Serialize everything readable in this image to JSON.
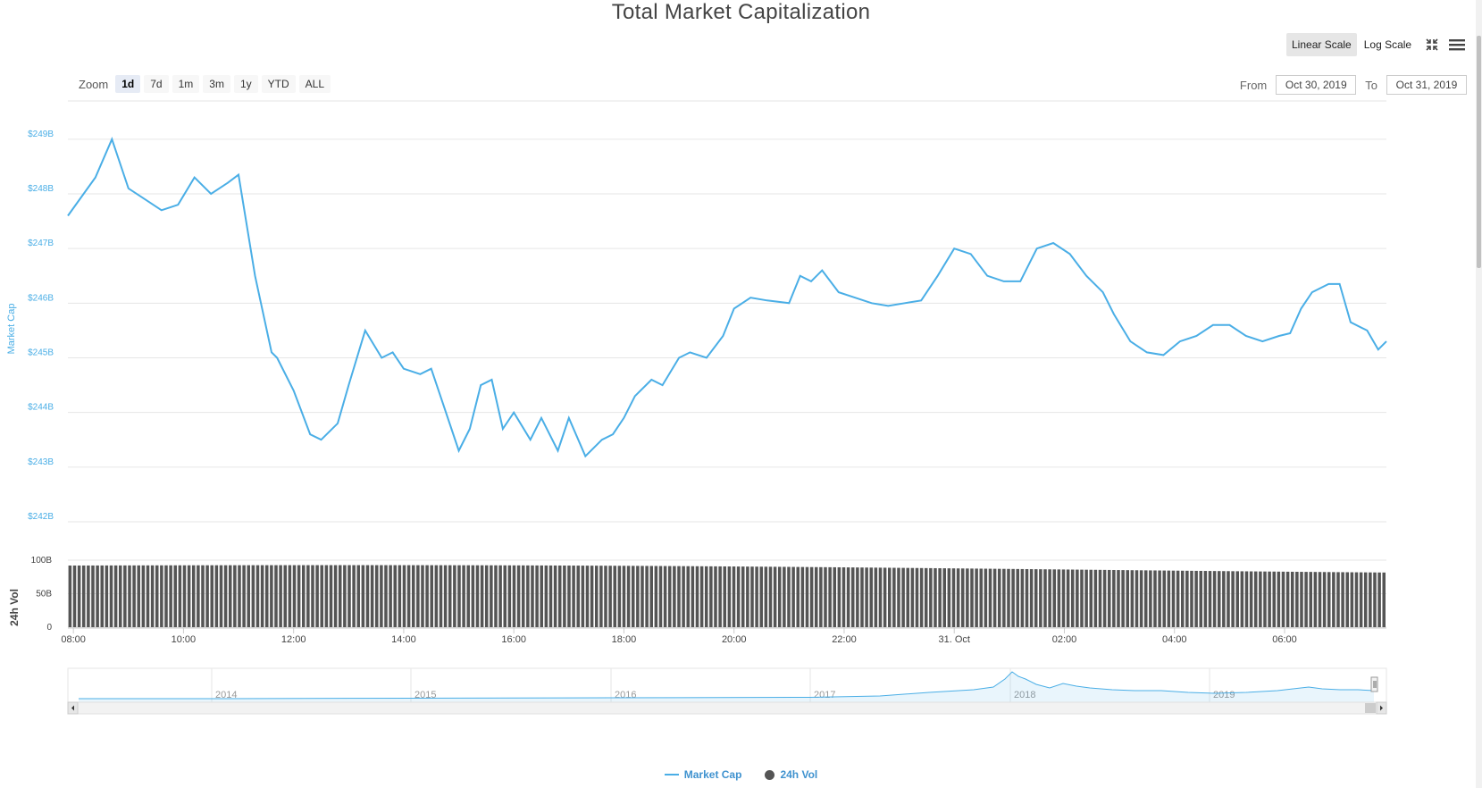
{
  "title": "Total Market Capitalization",
  "scale_buttons": {
    "linear": "Linear Scale",
    "log": "Log Scale",
    "active": "linear"
  },
  "icons": {
    "fullscreen": "expand-arrows-icon",
    "menu": "hamburger-menu-icon"
  },
  "zoom": {
    "label": "Zoom",
    "options": [
      "1d",
      "7d",
      "1m",
      "3m",
      "1y",
      "YTD",
      "ALL"
    ],
    "active": "1d"
  },
  "range": {
    "from_label": "From",
    "from_value": "Oct 30, 2019",
    "to_label": "To",
    "to_value": "Oct 31, 2019"
  },
  "colors": {
    "market_cap": "#4aaee6",
    "volume": "#555555",
    "axis_label": "#4aaee6"
  },
  "chart_data": [
    {
      "type": "line",
      "series": [
        {
          "name": "Market Cap",
          "unit": "B"
        }
      ],
      "ylabel": "Market Cap",
      "ylim": [
        242,
        249.7
      ],
      "y_ticks": [
        "$249B",
        "$248B",
        "$247B",
        "$246B",
        "$245B",
        "$244B",
        "$243B",
        "$242B"
      ],
      "x_ticks": [
        "08:00",
        "10:00",
        "12:00",
        "14:00",
        "16:00",
        "18:00",
        "20:00",
        "22:00",
        "31. Oct",
        "02:00",
        "04:00",
        "06:00"
      ],
      "x_range_hours": [
        7.9,
        31.85
      ],
      "x": [
        7.9,
        8.4,
        8.7,
        9.0,
        9.3,
        9.6,
        9.9,
        10.2,
        10.5,
        10.8,
        11.0,
        11.3,
        11.6,
        11.7,
        12.0,
        12.3,
        12.5,
        12.8,
        13.0,
        13.3,
        13.6,
        13.8,
        14.0,
        14.3,
        14.5,
        14.7,
        15.0,
        15.2,
        15.4,
        15.6,
        15.8,
        16.0,
        16.3,
        16.5,
        16.8,
        17.0,
        17.3,
        17.6,
        17.8,
        18.0,
        18.2,
        18.5,
        18.7,
        19.0,
        19.2,
        19.5,
        19.8,
        20.0,
        20.3,
        20.6,
        21.0,
        21.2,
        21.4,
        21.6,
        21.9,
        22.2,
        22.5,
        22.8,
        23.1,
        23.4,
        23.7,
        24.0,
        24.3,
        24.6,
        24.9,
        25.2,
        25.5,
        25.8,
        26.1,
        26.4,
        26.7,
        26.9,
        27.2,
        27.5,
        27.8,
        28.1,
        28.4,
        28.7,
        29.0,
        29.3,
        29.6,
        29.9,
        30.1,
        30.3,
        30.5,
        30.8,
        31.0,
        31.2,
        31.5,
        31.7,
        31.85
      ],
      "values": [
        247.6,
        248.3,
        249.0,
        248.1,
        247.9,
        247.7,
        247.8,
        248.3,
        248.0,
        248.2,
        248.35,
        246.5,
        245.1,
        245.0,
        244.4,
        243.6,
        243.5,
        243.8,
        244.5,
        245.5,
        245.0,
        245.1,
        244.8,
        244.7,
        244.8,
        244.2,
        243.3,
        243.7,
        244.5,
        244.6,
        243.7,
        244.0,
        243.5,
        243.9,
        243.3,
        243.9,
        243.2,
        243.5,
        243.6,
        243.9,
        244.3,
        244.6,
        244.5,
        245.0,
        245.1,
        245.0,
        245.4,
        245.9,
        246.1,
        246.05,
        246.0,
        246.5,
        246.4,
        246.6,
        246.2,
        246.1,
        246.0,
        245.95,
        246.0,
        246.05,
        246.5,
        247.0,
        246.9,
        246.5,
        246.4,
        246.4,
        247.0,
        247.1,
        246.9,
        246.5,
        246.2,
        245.8,
        245.3,
        245.1,
        245.05,
        245.3,
        245.4,
        245.6,
        245.6,
        245.4,
        245.3,
        245.4,
        245.45,
        245.9,
        246.2,
        246.35,
        246.35,
        245.65,
        245.5,
        245.15,
        245.3
      ]
    },
    {
      "type": "bar",
      "series": [
        {
          "name": "24h Vol",
          "unit": "B"
        }
      ],
      "ylabel": "24h Vol",
      "ylim": [
        0,
        120
      ],
      "y_ticks": [
        "100B",
        "50B",
        "0"
      ],
      "values_first_last": [
        92,
        84
      ]
    }
  ],
  "navigator": {
    "years": [
      "2014",
      "2015",
      "2016",
      "2017",
      "2018",
      "2019"
    ]
  },
  "legend": {
    "market_cap": "Market Cap",
    "volume": "24h Vol"
  }
}
